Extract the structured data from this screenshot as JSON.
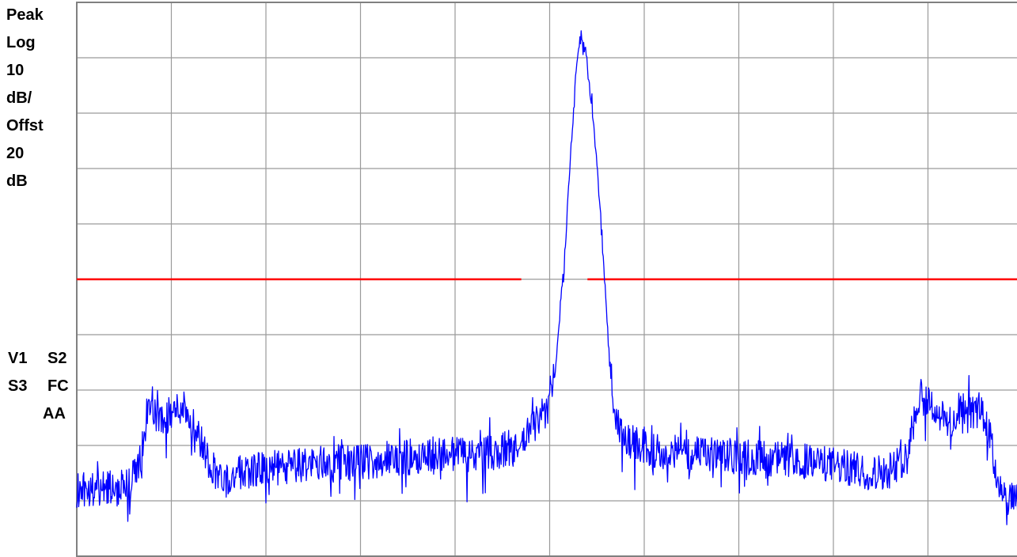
{
  "scale_info": {
    "lines": [
      "Peak",
      "Log",
      "10",
      "dB/",
      "Offst",
      "20",
      "dB"
    ]
  },
  "status_info": {
    "v1": "V1",
    "s2": "S2",
    "s3": "S3",
    "fc": "FC",
    "aa": "AA"
  },
  "colors": {
    "trace": "#0000ff",
    "display_line": "#ff0000",
    "grid": "#9a9a9a",
    "frame": "#808080",
    "text": "#000000"
  },
  "chart_data": {
    "type": "line",
    "title": "",
    "xlabel": "",
    "ylabel": "",
    "scale": "log",
    "db_per_division": 10,
    "reference_offset_db": 20,
    "x_divisions": 10,
    "y_divisions": 10,
    "xlim": [
      0,
      10
    ],
    "ylim": [
      0,
      100
    ],
    "grid": true,
    "display_line": {
      "level": 50,
      "segments": [
        [
          0,
          4.7
        ],
        [
          5.4,
          10
        ]
      ]
    },
    "series": [
      {
        "style": "noisy-trace",
        "points": [
          [
            0.0,
            12.0
          ],
          [
            0.3,
            12.5
          ],
          [
            0.55,
            12.5
          ],
          [
            0.68,
            18.0
          ],
          [
            0.75,
            27.0
          ],
          [
            0.85,
            25.0
          ],
          [
            1.0,
            25.5
          ],
          [
            1.12,
            27.5
          ],
          [
            1.25,
            23.5
          ],
          [
            1.4,
            17.0
          ],
          [
            1.55,
            13.5
          ],
          [
            1.8,
            15.5
          ],
          [
            2.2,
            16.0
          ],
          [
            2.6,
            17.0
          ],
          [
            3.0,
            17.0
          ],
          [
            3.4,
            17.5
          ],
          [
            3.7,
            18.5
          ],
          [
            4.2,
            18.5
          ],
          [
            4.5,
            19.0
          ],
          [
            4.65,
            19.0
          ],
          [
            4.75,
            21.5
          ],
          [
            4.85,
            24.0
          ],
          [
            4.95,
            26.0
          ],
          [
            5.05,
            32.0
          ],
          [
            5.15,
            52.0
          ],
          [
            5.22,
            72.0
          ],
          [
            5.28,
            88.0
          ],
          [
            5.33,
            94.0
          ],
          [
            5.38,
            91.0
          ],
          [
            5.45,
            81.0
          ],
          [
            5.52,
            66.0
          ],
          [
            5.58,
            50.0
          ],
          [
            5.63,
            36.0
          ],
          [
            5.7,
            24.0
          ],
          [
            5.8,
            21.0
          ],
          [
            6.1,
            19.0
          ],
          [
            6.5,
            18.5
          ],
          [
            7.0,
            18.0
          ],
          [
            7.5,
            17.5
          ],
          [
            8.0,
            16.5
          ],
          [
            8.4,
            15.0
          ],
          [
            8.6,
            15.5
          ],
          [
            8.72,
            17.0
          ],
          [
            8.82,
            22.0
          ],
          [
            8.92,
            30.0
          ],
          [
            9.05,
            27.0
          ],
          [
            9.2,
            24.0
          ],
          [
            9.4,
            25.5
          ],
          [
            9.55,
            26.5
          ],
          [
            9.65,
            22.0
          ],
          [
            9.72,
            15.0
          ],
          [
            9.8,
            10.5
          ],
          [
            10.0,
            10.0
          ]
        ]
      }
    ]
  }
}
